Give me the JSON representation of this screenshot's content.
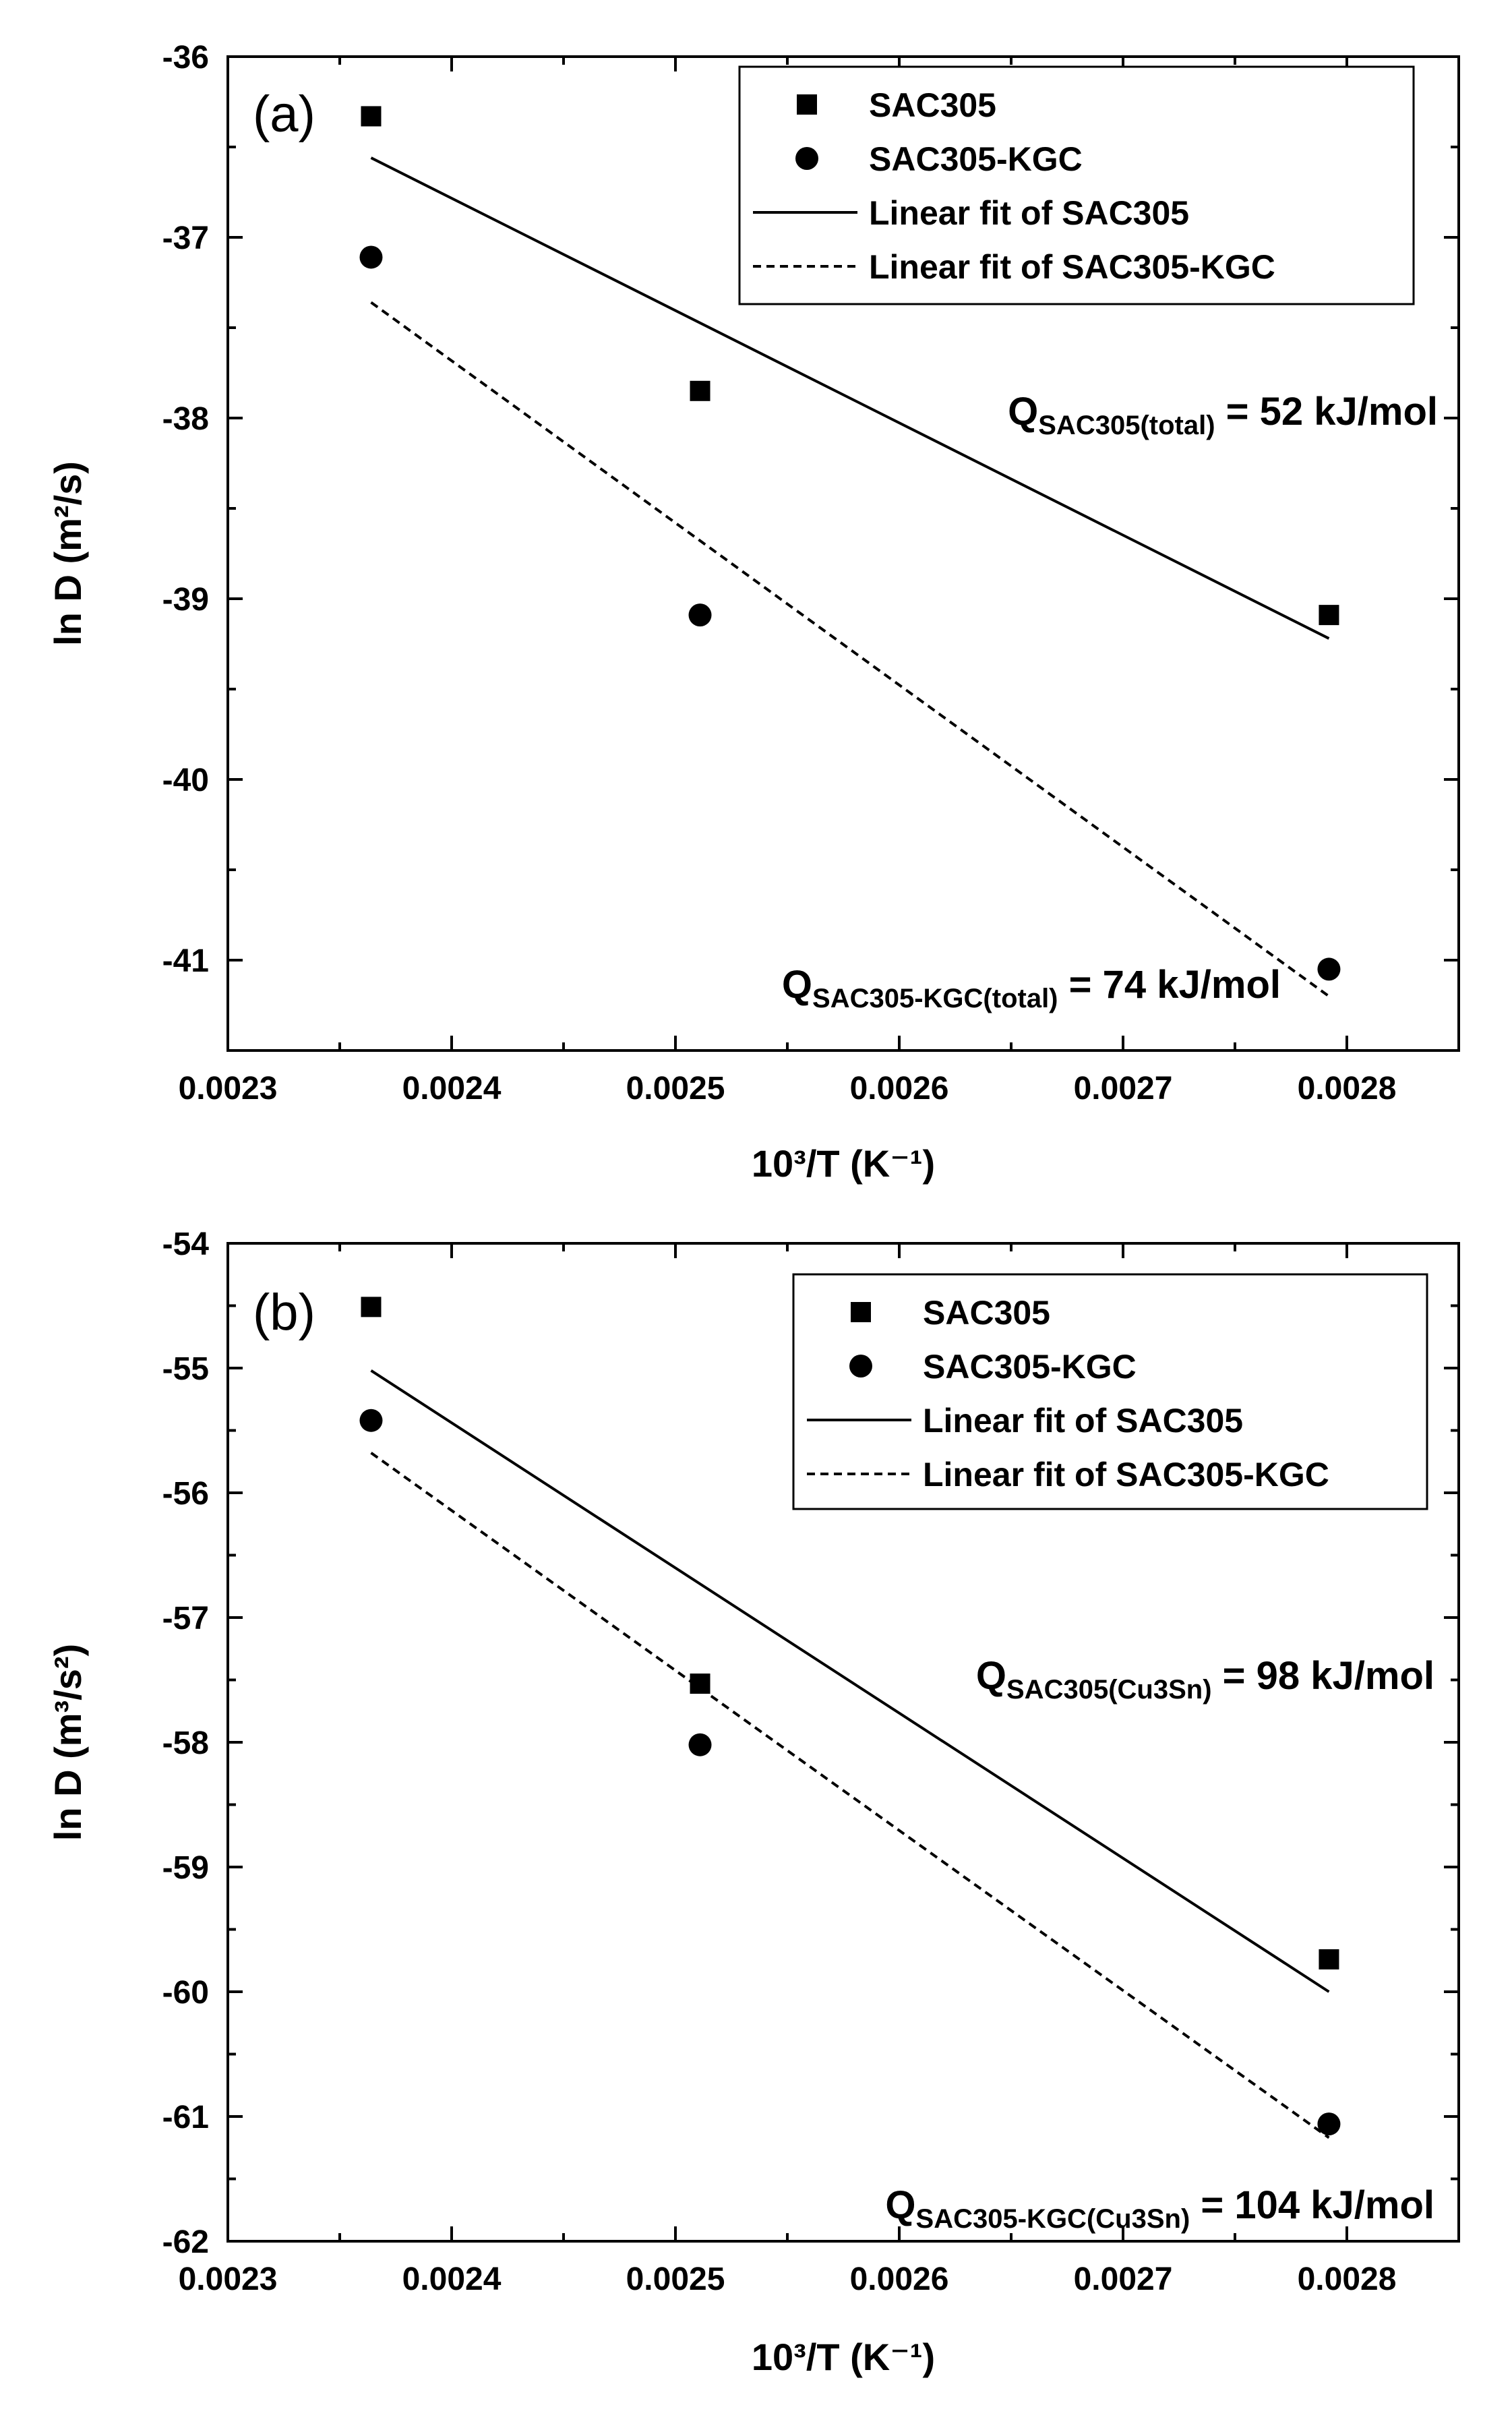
{
  "figure_title": "",
  "chart_data": [
    {
      "type": "scatter",
      "panel_label": "(a)",
      "xlabel": "10³/T (K⁻¹)",
      "ylabel": "ln D (m²/s)",
      "xlim": [
        0.0023,
        0.00285
      ],
      "ylim": [
        -41.5,
        -36
      ],
      "x_ticks": [
        0.0023,
        0.0024,
        0.0025,
        0.0026,
        0.0027,
        0.0028
      ],
      "x_tick_labels": [
        "0.0023",
        "0.0024",
        "0.0025",
        "0.0026",
        "0.0027",
        "0.0028"
      ],
      "y_ticks": [
        -36,
        -37,
        -38,
        -39,
        -40,
        -41
      ],
      "y_tick_labels": [
        "-36",
        "-37",
        "-38",
        "-39",
        "-40",
        "-41"
      ],
      "legend_position": "top-right",
      "series": [
        {
          "name": "SAC305",
          "marker": "square",
          "x": [
            0.002364,
            0.002511,
            0.002792
          ],
          "values": [
            -36.33,
            -37.85,
            -39.09
          ]
        },
        {
          "name": "SAC305-KGC",
          "marker": "circle",
          "x": [
            0.002364,
            0.002511,
            0.002792
          ],
          "values": [
            -37.11,
            -39.09,
            -41.05
          ]
        }
      ],
      "fits": [
        {
          "name": "Linear fit of SAC305",
          "style": "solid",
          "x": [
            0.002364,
            0.002792
          ],
          "values": [
            -36.56,
            -39.22
          ]
        },
        {
          "name": "Linear fit of SAC305-KGC",
          "style": "dashed",
          "x": [
            0.002364,
            0.002792
          ],
          "values": [
            -37.36,
            -41.2
          ]
        }
      ],
      "annotations": [
        {
          "prefix": "Q",
          "subscript": "SAC305(total)",
          "suffix": " = 52 kJ/mol"
        },
        {
          "prefix": "Q",
          "subscript": "SAC305-KGC(total)",
          "suffix": " = 74 kJ/mol"
        }
      ]
    },
    {
      "type": "scatter",
      "panel_label": "(b)",
      "xlabel": "10³/T (K⁻¹)",
      "ylabel": "ln D (m³/s²)",
      "xlim": [
        0.0023,
        0.00285
      ],
      "ylim": [
        -62,
        -54
      ],
      "x_ticks": [
        0.0023,
        0.0024,
        0.0025,
        0.0026,
        0.0027,
        0.0028
      ],
      "x_tick_labels": [
        "0.0023",
        "0.0024",
        "0.0025",
        "0.0026",
        "0.0027",
        "0.0028"
      ],
      "y_ticks": [
        -54,
        -55,
        -56,
        -57,
        -58,
        -59,
        -60,
        -61,
        -62
      ],
      "y_tick_labels": [
        "-54",
        "-55",
        "-56",
        "-57",
        "-58",
        "-59",
        "-60",
        "-61",
        "-62"
      ],
      "legend_position": "top-right",
      "series": [
        {
          "name": "SAC305",
          "marker": "square",
          "x": [
            0.002364,
            0.002511,
            0.002792
          ],
          "values": [
            -54.51,
            -57.53,
            -59.74
          ]
        },
        {
          "name": "SAC305-KGC",
          "marker": "circle",
          "x": [
            0.002364,
            0.002511,
            0.002792
          ],
          "values": [
            -55.42,
            -58.02,
            -61.06
          ]
        }
      ],
      "fits": [
        {
          "name": "Linear fit of SAC305",
          "style": "solid",
          "x": [
            0.002364,
            0.002792
          ],
          "values": [
            -55.02,
            -60.0
          ]
        },
        {
          "name": "Linear fit of SAC305-KGC",
          "style": "dashed",
          "x": [
            0.002364,
            0.002792
          ],
          "values": [
            -55.68,
            -61.17
          ]
        }
      ],
      "annotations": [
        {
          "prefix": "Q",
          "subscript": "SAC305(Cu3Sn)",
          "suffix": " = 98 kJ/mol"
        },
        {
          "prefix": "Q",
          "subscript": "SAC305-KGC(Cu3Sn)",
          "suffix": " = 104 kJ/mol"
        }
      ]
    }
  ]
}
